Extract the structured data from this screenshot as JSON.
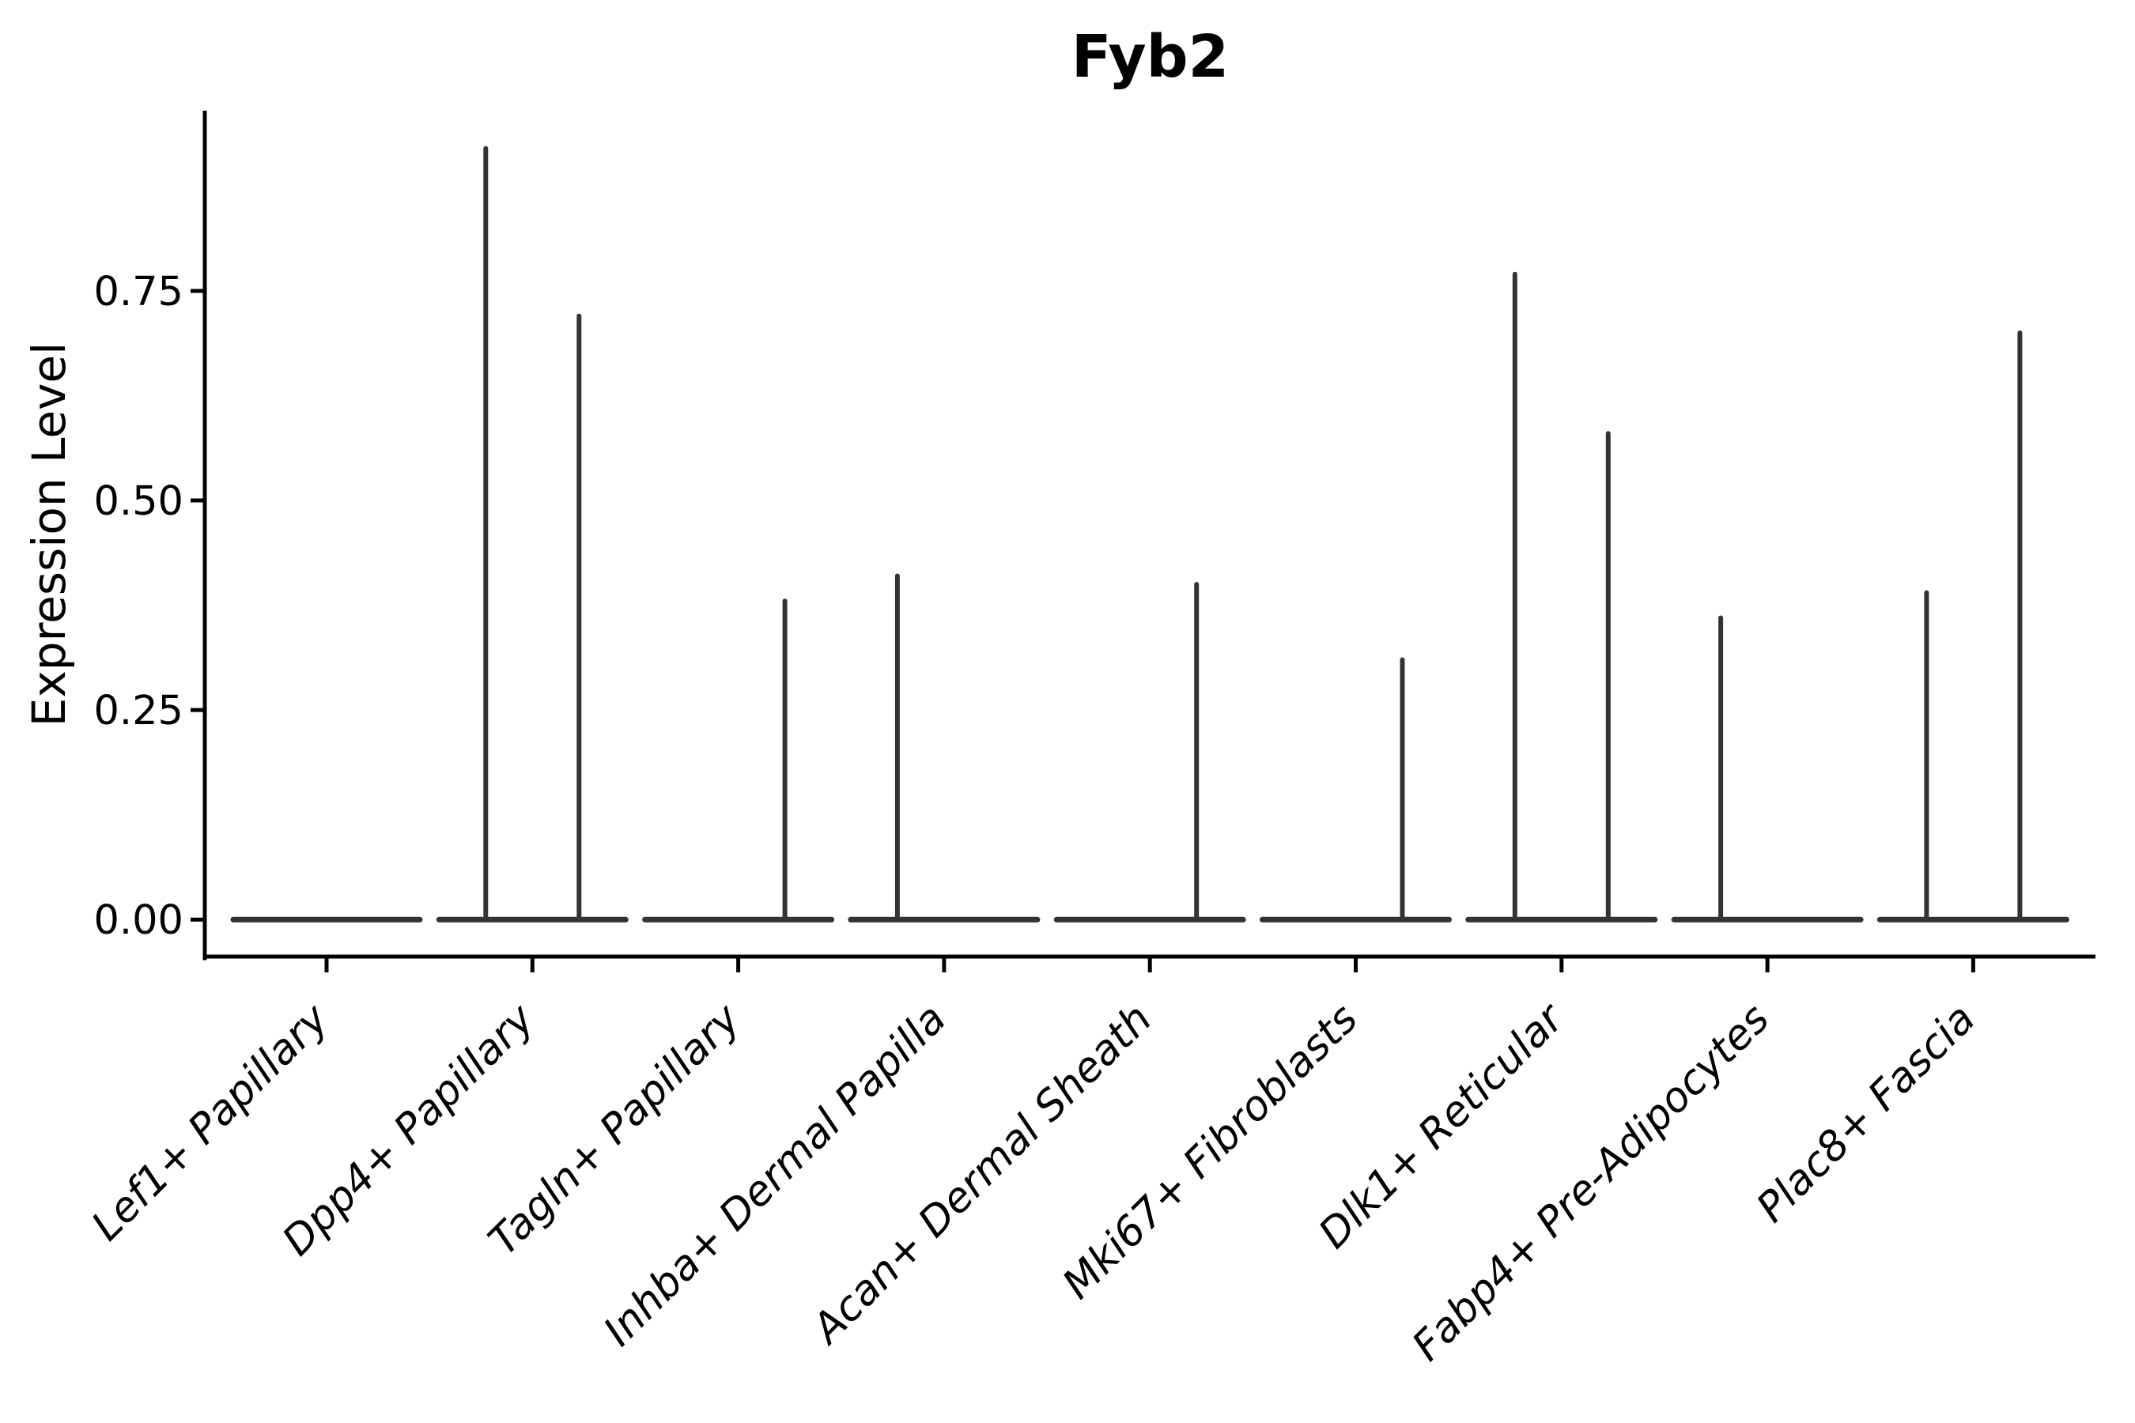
{
  "figure": {
    "title": "Fyb2",
    "background_color": "#ffffff"
  },
  "chart_data": {
    "type": "violin",
    "title": "Fyb2",
    "xlabel": "",
    "ylabel": "Expression Level",
    "ylim": [
      -0.046,
      0.965
    ],
    "yticks": [
      0.0,
      0.25,
      0.5,
      0.75
    ],
    "ytick_labels": [
      "0.00",
      "0.25",
      "0.50",
      "0.75"
    ],
    "grid": false,
    "legend_position": "none",
    "xtick_rotation_degrees": 45,
    "violins_per_category": 2,
    "baseline_value": 0.0,
    "categories": [
      "Lef1+ Papillary",
      "Dpp4+ Papillary",
      "Tagln+ Papillary",
      "Inhba+ Dermal Papilla",
      "Acan+ Dermal Sheath",
      "Mki67+ Fibroblasts",
      "Dlk1+ Reticular",
      "Fabp4+ Pre-Adipocytes",
      "Plac8+ Fascia"
    ],
    "series": [
      {
        "name": "left_violin_max_expression",
        "values": [
          0,
          0.92,
          0,
          0.41,
          0,
          0,
          0.77,
          0.36,
          0.39
        ]
      },
      {
        "name": "right_violin_max_expression",
        "values": [
          0,
          0.72,
          0.38,
          0,
          0.4,
          0.31,
          0.58,
          0,
          0.7
        ]
      }
    ],
    "colors": {
      "violin_stroke": "#333333",
      "axis": "#000000",
      "text": "#000000",
      "background": "#ffffff"
    }
  }
}
